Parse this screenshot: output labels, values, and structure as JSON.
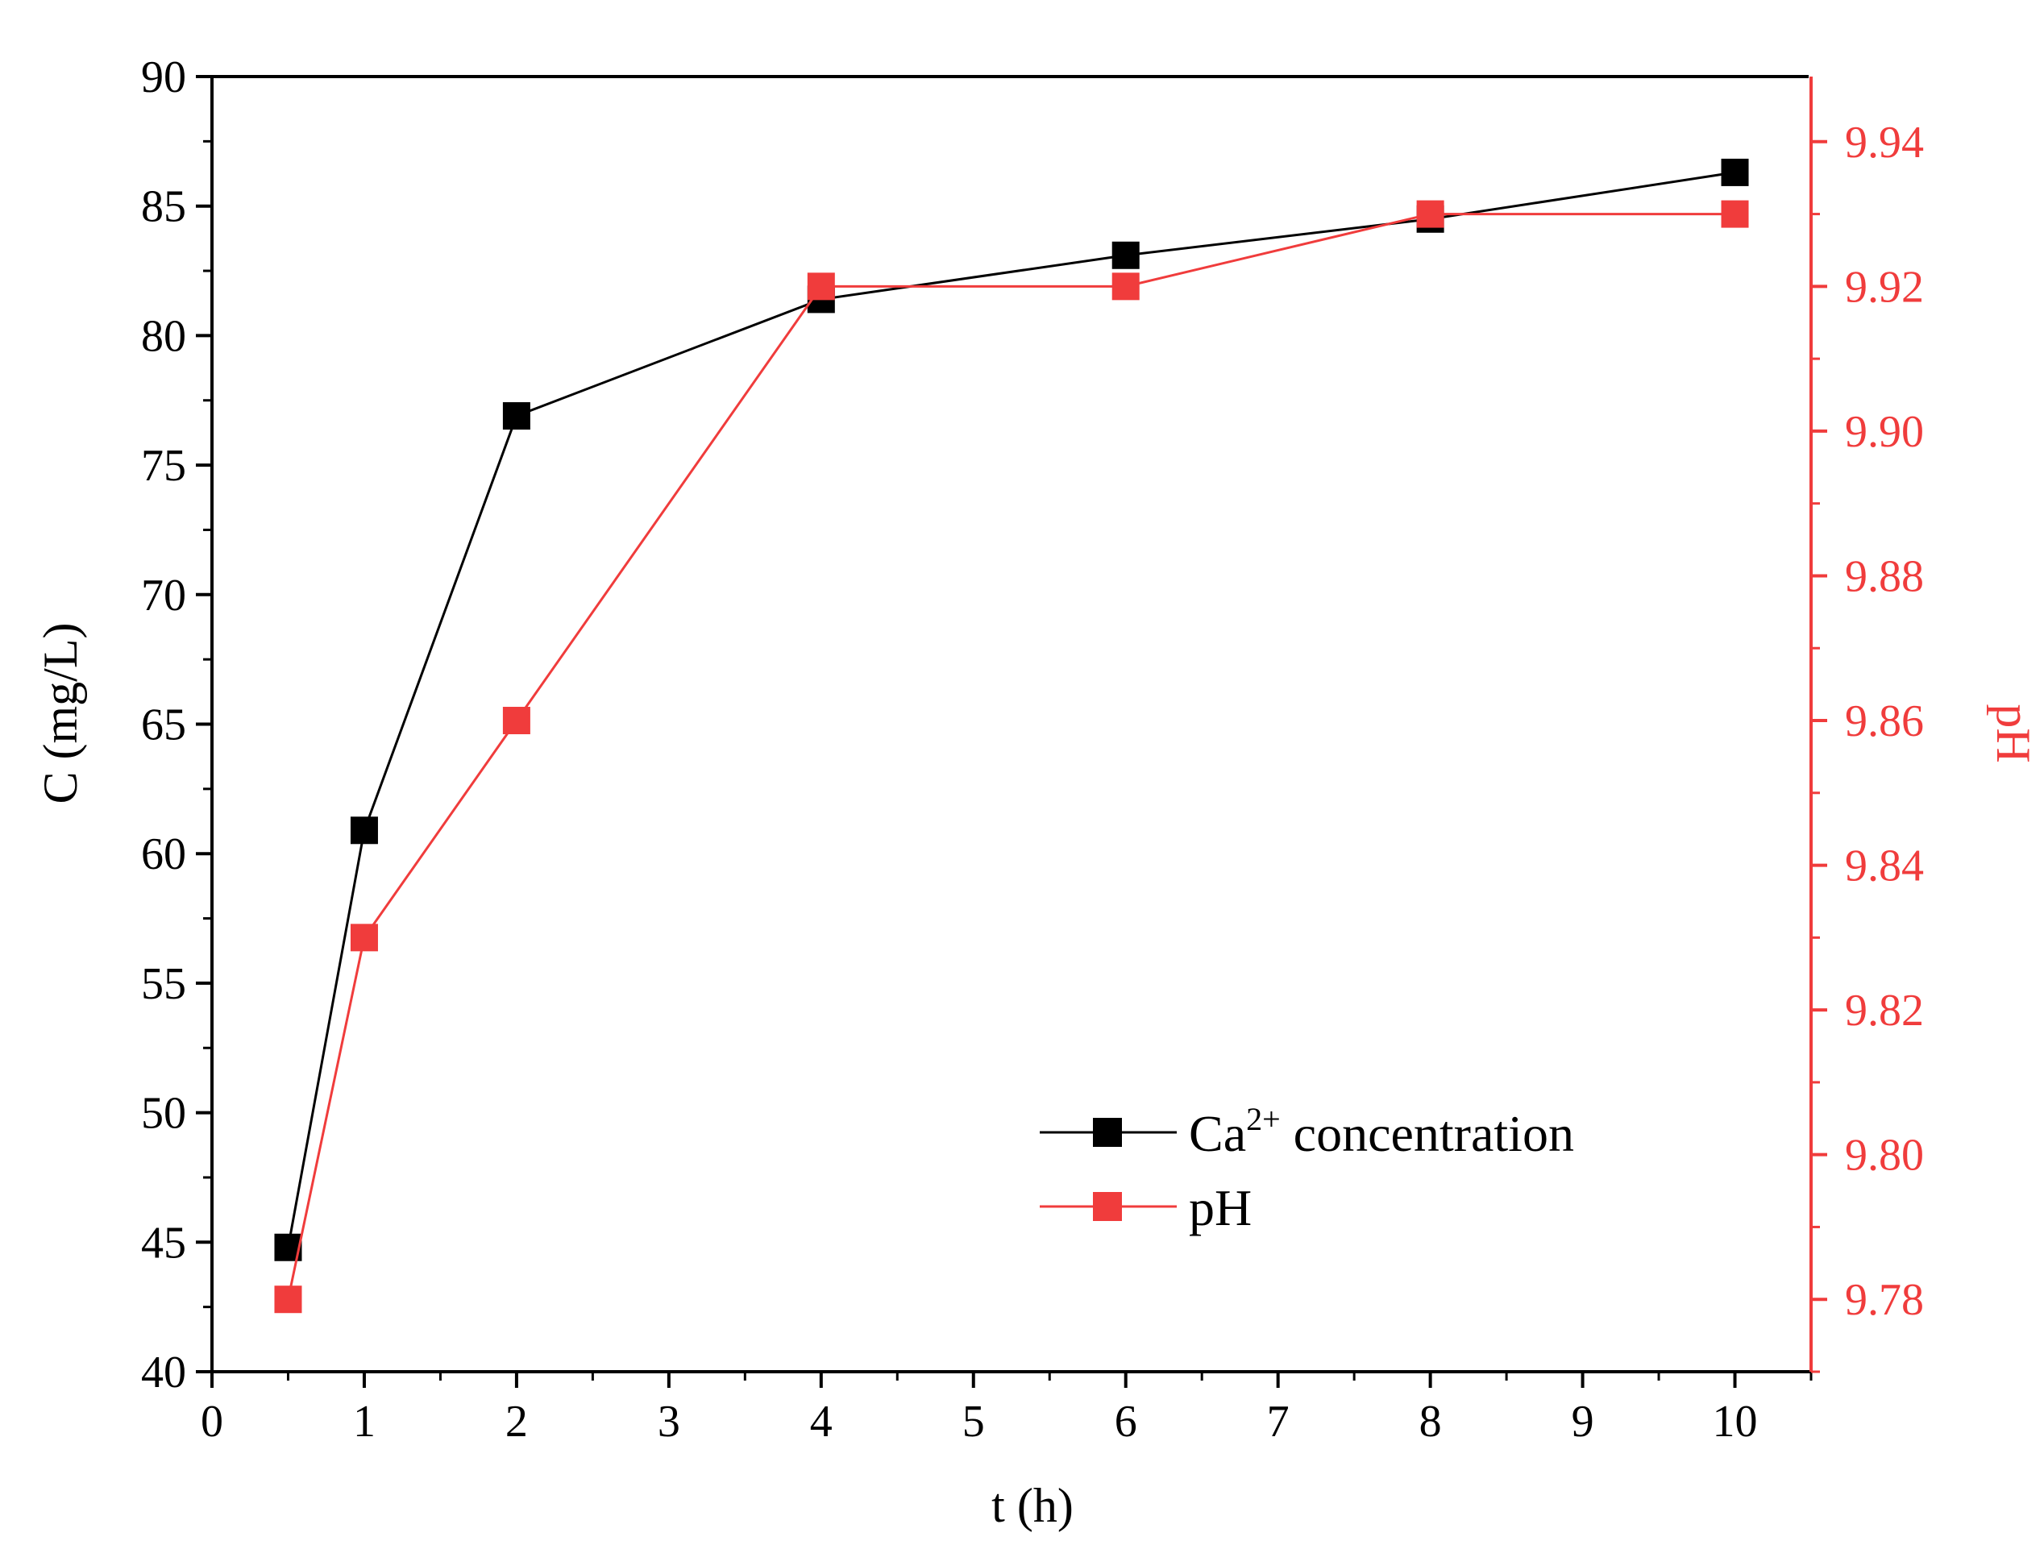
{
  "colors": {
    "left": "#000000",
    "right": "#f03c3c"
  },
  "chart_data": {
    "type": "line",
    "x_label": "t (h)",
    "x_ticks": [
      "0",
      "1",
      "2",
      "3",
      "4",
      "5",
      "6",
      "7",
      "8",
      "9",
      "10"
    ],
    "xlim": [
      0,
      10.5
    ],
    "y_label": "C (mg/L)",
    "y_ticks": [
      "40",
      "45",
      "50",
      "55",
      "60",
      "65",
      "70",
      "75",
      "80",
      "85",
      "90"
    ],
    "ylim": [
      40,
      90
    ],
    "y2_label": "pH",
    "y2_ticks": [
      "9.78",
      "9.80",
      "9.82",
      "9.84",
      "9.86",
      "9.88",
      "9.90",
      "9.92",
      "9.94"
    ],
    "y2lim": [
      9.77,
      9.949
    ],
    "legend_position": "bottom-right",
    "series": [
      {
        "name": "Ca",
        "name_sup": "2+",
        "name_rest": " concentration",
        "axis": "left",
        "x": [
          0.5,
          1,
          2,
          4,
          6,
          8,
          10
        ],
        "values": [
          44.8,
          60.9,
          76.9,
          81.4,
          83.1,
          84.5,
          86.3
        ]
      },
      {
        "name": "pH",
        "axis": "right",
        "x": [
          0.5,
          1,
          2,
          4,
          6,
          8,
          10
        ],
        "values": [
          9.78,
          9.83,
          9.86,
          9.92,
          9.92,
          9.93,
          9.93
        ]
      }
    ]
  }
}
